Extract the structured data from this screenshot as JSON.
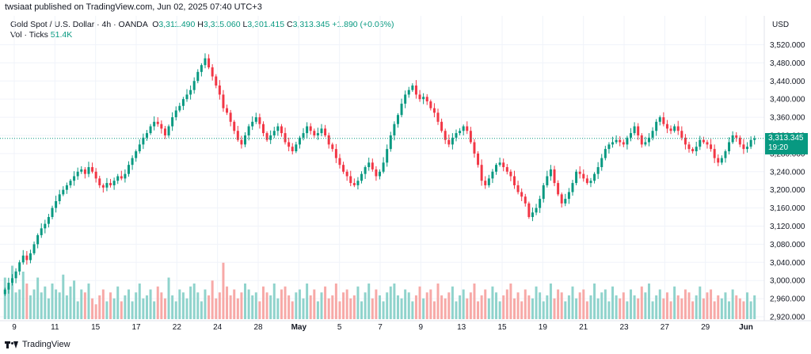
{
  "header": {
    "publisher_line": "twsiaat published on TradingView.com, Jun 02, 2025 07:40 UTC+3"
  },
  "legend": {
    "symbol": "Gold Spot / U.S. Dollar · 4h · OANDA",
    "open_label": "O",
    "open": "3,311.490",
    "high_label": "H",
    "high": "3,315.060",
    "low_label": "L",
    "low": "3,301.415",
    "close_label": "C",
    "close": "3,313.345",
    "change": "+1.890 (+0.06%)",
    "vol_label": "Vol · Ticks",
    "vol_value": "51.4K"
  },
  "price_axis": {
    "currency": "USD",
    "last_price": "3,313.345",
    "countdown": "19:20"
  },
  "footer": {
    "brand": "TradingView"
  },
  "colors": {
    "up": "#089981",
    "down": "#f23645",
    "up_vol": "#8fd3cc",
    "down_vol": "#f7a9a7",
    "grid": "#f0f3fa",
    "price_line": "#089981"
  },
  "chart_data": {
    "type": "candlestick",
    "title": "Gold Spot / U.S. Dollar · 4h · OANDA",
    "ylim": [
      2920,
      3540
    ],
    "y_ticks": [
      "3,520.000",
      "3,480.000",
      "3,440.000",
      "3,400.000",
      "3,360.000",
      "3,320.000",
      "3,280.000",
      "3,240.000",
      "3,200.000",
      "3,160.000",
      "3,120.000",
      "3,080.000",
      "3,040.000",
      "3,000.000",
      "2,960.000",
      "2,920.000"
    ],
    "x_tick_labels": [
      "9",
      "11",
      "15",
      "17",
      "22",
      "24",
      "28",
      "May",
      "5",
      "7",
      "9",
      "13",
      "15",
      "19",
      "21",
      "23",
      "27",
      "29",
      "Jun"
    ],
    "last_price": 3313.345,
    "close_series": [
      2980,
      2995,
      3005,
      3020,
      3040,
      3055,
      3045,
      3060,
      3080,
      3100,
      3115,
      3125,
      3140,
      3160,
      3175,
      3190,
      3200,
      3210,
      3220,
      3230,
      3240,
      3245,
      3235,
      3250,
      3240,
      3225,
      3210,
      3205,
      3215,
      3210,
      3220,
      3230,
      3225,
      3235,
      3255,
      3270,
      3285,
      3300,
      3315,
      3325,
      3340,
      3350,
      3345,
      3335,
      3320,
      3340,
      3360,
      3375,
      3385,
      3400,
      3410,
      3420,
      3440,
      3460,
      3475,
      3490,
      3470,
      3450,
      3430,
      3410,
      3380,
      3370,
      3350,
      3330,
      3310,
      3300,
      3320,
      3340,
      3350,
      3360,
      3345,
      3325,
      3310,
      3320,
      3330,
      3340,
      3325,
      3305,
      3295,
      3285,
      3300,
      3315,
      3325,
      3340,
      3330,
      3320,
      3325,
      3335,
      3320,
      3300,
      3290,
      3270,
      3255,
      3240,
      3230,
      3215,
      3210,
      3220,
      3235,
      3250,
      3260,
      3245,
      3230,
      3240,
      3260,
      3290,
      3320,
      3345,
      3365,
      3390,
      3410,
      3420,
      3430,
      3410,
      3400,
      3405,
      3395,
      3380,
      3370,
      3350,
      3330,
      3310,
      3300,
      3315,
      3325,
      3330,
      3340,
      3330,
      3305,
      3280,
      3255,
      3220,
      3210,
      3225,
      3240,
      3255,
      3260,
      3250,
      3240,
      3230,
      3210,
      3195,
      3185,
      3170,
      3140,
      3150,
      3160,
      3180,
      3210,
      3230,
      3245,
      3215,
      3190,
      3170,
      3180,
      3195,
      3215,
      3240,
      3235,
      3225,
      3215,
      3220,
      3235,
      3250,
      3270,
      3290,
      3300,
      3305,
      3310,
      3305,
      3300,
      3315,
      3325,
      3340,
      3320,
      3300,
      3305,
      3315,
      3330,
      3350,
      3360,
      3345,
      3335,
      3330,
      3340,
      3330,
      3315,
      3300,
      3290,
      3285,
      3295,
      3310,
      3305,
      3300,
      3290,
      3270,
      3260,
      3270,
      3285,
      3305,
      3320,
      3315,
      3300,
      3290,
      3295,
      3310,
      3313.345
    ],
    "volume_series": [
      0.7,
      0.55,
      0.9,
      0.45,
      0.5,
      0.8,
      0.6,
      0.4,
      0.5,
      0.7,
      0.45,
      0.55,
      0.35,
      0.6,
      0.5,
      0.45,
      0.75,
      0.4,
      0.55,
      0.65,
      0.3,
      0.5,
      0.45,
      0.6,
      0.35,
      0.25,
      0.4,
      0.5,
      0.3,
      0.45,
      0.35,
      0.55,
      0.3,
      0.4,
      0.5,
      0.3,
      0.45,
      0.6,
      0.35,
      0.4,
      0.5,
      0.3,
      0.55,
      0.45,
      0.35,
      0.7,
      0.4,
      0.3,
      0.5,
      0.45,
      0.35,
      0.55,
      0.6,
      0.45,
      0.3,
      0.5,
      0.4,
      0.65,
      0.35,
      0.45,
      0.95,
      0.55,
      0.4,
      0.5,
      0.35,
      0.45,
      0.6,
      0.5,
      0.4,
      0.45,
      0.3,
      0.55,
      0.45,
      0.4,
      0.6,
      0.35,
      0.5,
      0.55,
      0.4,
      0.3,
      0.45,
      0.5,
      0.35,
      0.6,
      0.4,
      0.5,
      0.3,
      0.45,
      0.55,
      0.35,
      0.4,
      0.6,
      0.3,
      0.45,
      0.5,
      0.35,
      0.4,
      0.55,
      0.3,
      0.45,
      0.6,
      0.35,
      0.5,
      0.4,
      0.3,
      0.45,
      0.55,
      0.6,
      0.4,
      0.35,
      0.5,
      0.45,
      0.3,
      0.4,
      0.55,
      0.35,
      0.45,
      0.5,
      0.3,
      0.6,
      0.4,
      0.35,
      0.45,
      0.55,
      0.3,
      0.4,
      0.5,
      0.35,
      0.45,
      0.6,
      0.3,
      0.4,
      0.5,
      0.35,
      0.55,
      0.45,
      0.3,
      0.4,
      0.5,
      0.6,
      0.35,
      0.45,
      0.3,
      0.5,
      0.4,
      0.35,
      0.55,
      0.45,
      0.3,
      0.4,
      0.6,
      0.35,
      0.5,
      0.45,
      0.3,
      0.4,
      0.55,
      0.35,
      0.45,
      0.5,
      0.3,
      0.4,
      0.6,
      0.35,
      0.45,
      0.5,
      0.3,
      0.55,
      0.4,
      0.35,
      0.45,
      0.3,
      0.5,
      0.4,
      0.35,
      0.55,
      0.45,
      0.6,
      0.3,
      0.4,
      0.5,
      0.35,
      0.45,
      0.3,
      0.55,
      0.4,
      0.35,
      0.5,
      0.45,
      0.3,
      0.4,
      0.55,
      0.35,
      0.45,
      0.5,
      0.3,
      0.4,
      0.35,
      0.45,
      0.3,
      0.5,
      0.4,
      0.35,
      0.3,
      0.45,
      0.3,
      0.4,
      0.35,
      0.3
    ]
  }
}
